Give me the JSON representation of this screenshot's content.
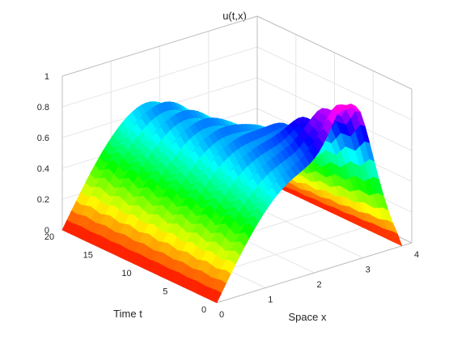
{
  "chart_data": {
    "type": "surface",
    "title": "u(t,x)",
    "xlabel": "Space x",
    "ylabel": "Time t",
    "zlabel": "",
    "xlim": [
      0,
      4
    ],
    "ylim": [
      0,
      20
    ],
    "zlim": [
      0,
      1
    ],
    "x_ticks": [
      "0",
      "1",
      "2",
      "3",
      "4"
    ],
    "y_ticks": [
      "0",
      "5",
      "10",
      "15",
      "20"
    ],
    "z_ticks": [
      "0",
      "0.2",
      "0.4",
      "0.6",
      "0.8",
      "1"
    ],
    "grid": true,
    "colormap": "hsv",
    "view": "3d-perspective",
    "series": [
      {
        "x": [
          0,
          0.2,
          0.4,
          0.6,
          0.8,
          1.0,
          1.2,
          1.4,
          1.6,
          1.8,
          2.0,
          2.2,
          2.4,
          2.6,
          2.8,
          3.0,
          3.2,
          3.4,
          3.6,
          3.8
        ],
        "t": [
          0,
          1.25,
          2.5,
          3.75,
          5,
          6.25,
          7.5,
          8.75,
          10,
          11.25,
          12.5,
          13.75,
          15,
          16.25,
          17.5,
          18.75,
          20
        ],
        "u_peaks": [
          {
            "t": 0,
            "x": 0.9,
            "u": 0.7
          },
          {
            "t": 0,
            "x": 2.8,
            "u": 0.72
          },
          {
            "t": 20,
            "x": 0.9,
            "u": 0.65
          },
          {
            "t": 20,
            "x": 2.8,
            "u": 0.2
          }
        ]
      }
    ]
  }
}
